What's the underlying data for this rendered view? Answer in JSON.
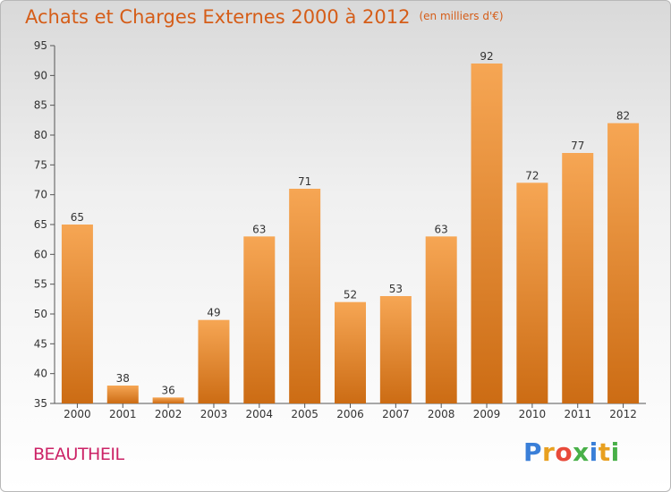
{
  "title": "Achats et Charges Externes 2000 à 2012",
  "subtitle": "(en milliers d'€)",
  "commune": "BEAUTHEIL",
  "logo_text": "Proxiti",
  "colors": {
    "title": "#d55d18",
    "bar_top": "#f6a654",
    "bar_bottom": "#cc6c14",
    "commune": "#cc2266"
  },
  "chart_data": {
    "type": "bar",
    "title": "Achats et Charges Externes 2000 à 2012",
    "subtitle": "(en milliers d'€)",
    "categories": [
      "2000",
      "2001",
      "2002",
      "2003",
      "2004",
      "2005",
      "2006",
      "2007",
      "2008",
      "2009",
      "2010",
      "2011",
      "2012"
    ],
    "values": [
      65,
      38,
      36,
      49,
      63,
      71,
      52,
      53,
      63,
      92,
      72,
      77,
      82
    ],
    "ylim": [
      35,
      95
    ],
    "yticks": [
      35,
      40,
      45,
      50,
      55,
      60,
      65,
      70,
      75,
      80,
      85,
      90,
      95
    ],
    "grid": false,
    "data_labels": true
  }
}
